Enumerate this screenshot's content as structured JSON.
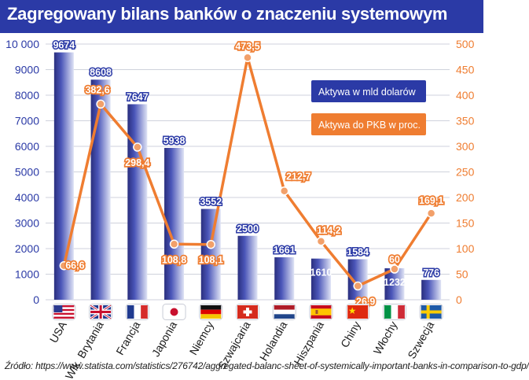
{
  "source": "Źródło: https://www.statista.com/statistics/276742/aggregated-balanc-sheet-of-systemically-important-banks-in-comparison-to-gdp/",
  "chart_data": {
    "type": "bar",
    "title": "Zagregowany bilans banków o znaczeniu systemowym",
    "categories": [
      "USA",
      "Wlk. Brytania",
      "Francja",
      "Japonia",
      "Niemcy",
      "Szwajcaria",
      "Holandia",
      "Hiszpania",
      "Chiny",
      "Włochy",
      "Szwecja"
    ],
    "series": [
      {
        "name": "Aktywa w mld dolarów",
        "type": "bar",
        "axis": "left",
        "color": "#2b3aa6",
        "values": [
          9674,
          8608,
          7647,
          5938,
          3552,
          2500,
          1661,
          1610,
          1584,
          1232,
          776
        ],
        "labels": [
          "9674",
          "8608",
          "7647",
          "5938",
          "3552",
          "2500",
          "1661",
          "1610",
          "1584",
          "1232",
          "776"
        ]
      },
      {
        "name": "Aktywa do PKB w proc.",
        "type": "line",
        "axis": "right",
        "color": "#ef7d31",
        "values": [
          66.6,
          382.6,
          298.4,
          108.8,
          108.1,
          473.5,
          212.7,
          114.2,
          26.9,
          60,
          169.1
        ],
        "labels": [
          "66,6",
          "382,6",
          "298,4",
          "108,8",
          "108,1",
          "473,5",
          "212,7",
          "114,2",
          "26,9",
          "60",
          "169,1"
        ]
      }
    ],
    "ylim_left": [
      0,
      10000
    ],
    "yticks_left": [
      "0",
      "1000",
      "2000",
      "3000",
      "4000",
      "5000",
      "6000",
      "7000",
      "8000",
      "9000",
      "10 000"
    ],
    "ylim_right": [
      0,
      500
    ],
    "yticks_right": [
      "0",
      "50",
      "100",
      "150",
      "200",
      "250",
      "300",
      "350",
      "400",
      "450",
      "500"
    ],
    "grid": true,
    "legend_position": "top-right",
    "flags": [
      "us-flag-icon",
      "uk-flag-icon",
      "france-flag-icon",
      "japan-flag-icon",
      "germany-flag-icon",
      "switzerland-flag-icon",
      "netherlands-flag-icon",
      "spain-flag-icon",
      "china-flag-icon",
      "italy-flag-icon",
      "sweden-flag-icon"
    ],
    "colors": {
      "bar": "#2b3aa6",
      "line": "#ef7d31",
      "axis_left": "#2b3aa6",
      "axis_right": "#ef7d31",
      "title_bg": "#2b3aa6"
    }
  }
}
